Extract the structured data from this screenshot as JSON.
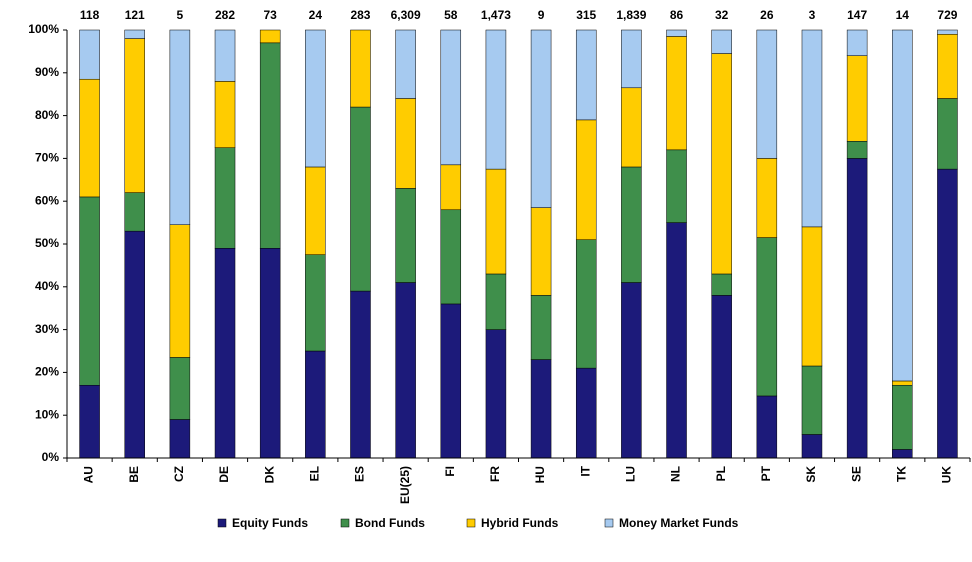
{
  "chart_data": {
    "type": "stacked-bar-100",
    "categories": [
      "AU",
      "BE",
      "CZ",
      "DE",
      "DK",
      "EL",
      "ES",
      "EU(25)",
      "FI",
      "FR",
      "HU",
      "IT",
      "LU",
      "NL",
      "PL",
      "PT",
      "SK",
      "SE",
      "TK",
      "UK"
    ],
    "series": [
      {
        "name": "Equity Funds",
        "color": "#1c1a7a",
        "values": [
          17,
          53,
          9,
          49,
          49,
          25,
          39,
          41,
          36,
          30,
          23,
          21,
          41,
          55,
          38,
          14.5,
          5.5,
          70,
          2,
          67.5
        ]
      },
      {
        "name": "Bond Funds",
        "color": "#3f8f4b",
        "values": [
          44,
          9,
          14.5,
          23.5,
          48,
          22.5,
          43,
          22,
          22,
          13,
          15,
          30,
          27,
          17,
          5,
          37,
          16,
          4,
          15,
          16.5
        ]
      },
      {
        "name": "Hybrid Funds",
        "color": "#ffcc00",
        "values": [
          27.5,
          36,
          31,
          15.5,
          3,
          20.5,
          18,
          21,
          10.5,
          24.5,
          20.5,
          28,
          18.5,
          26.5,
          51.5,
          18.5,
          32.5,
          20,
          1,
          15
        ]
      },
      {
        "name": "Money Market Funds",
        "color": "#a6caf0",
        "values": [
          11.5,
          2,
          45.5,
          12,
          0,
          32,
          0,
          16,
          31.5,
          32.5,
          41.5,
          21,
          13.5,
          1.5,
          5.5,
          30,
          46,
          6,
          82,
          1
        ]
      }
    ],
    "totals": {
      "values": [
        118,
        121,
        5,
        282,
        73,
        24,
        283,
        6309,
        58,
        1473,
        9,
        315,
        1839,
        86,
        32,
        26,
        3,
        147,
        14,
        729
      ],
      "value_labels": [
        "118",
        "121",
        "5",
        "282",
        "73",
        "24",
        "283",
        "6,309",
        "58",
        "1,473",
        "9",
        "315",
        "1,839",
        "86",
        "32",
        "26",
        "3",
        "147",
        "14",
        "729"
      ]
    },
    "ylim": [
      0,
      100
    ],
    "yticks": [
      {
        "value": 0,
        "label": "0%"
      },
      {
        "value": 10,
        "label": "10%"
      },
      {
        "value": 20,
        "label": "20%"
      },
      {
        "value": 30,
        "label": "30%"
      },
      {
        "value": 40,
        "label": "40%"
      },
      {
        "value": 50,
        "label": "50%"
      },
      {
        "value": 60,
        "label": "60%"
      },
      {
        "value": 70,
        "label": "70%"
      },
      {
        "value": 80,
        "label": "80%"
      },
      {
        "value": 90,
        "label": "90%"
      },
      {
        "value": 100,
        "label": "100%"
      }
    ],
    "grid": false,
    "legend": "bottom"
  }
}
